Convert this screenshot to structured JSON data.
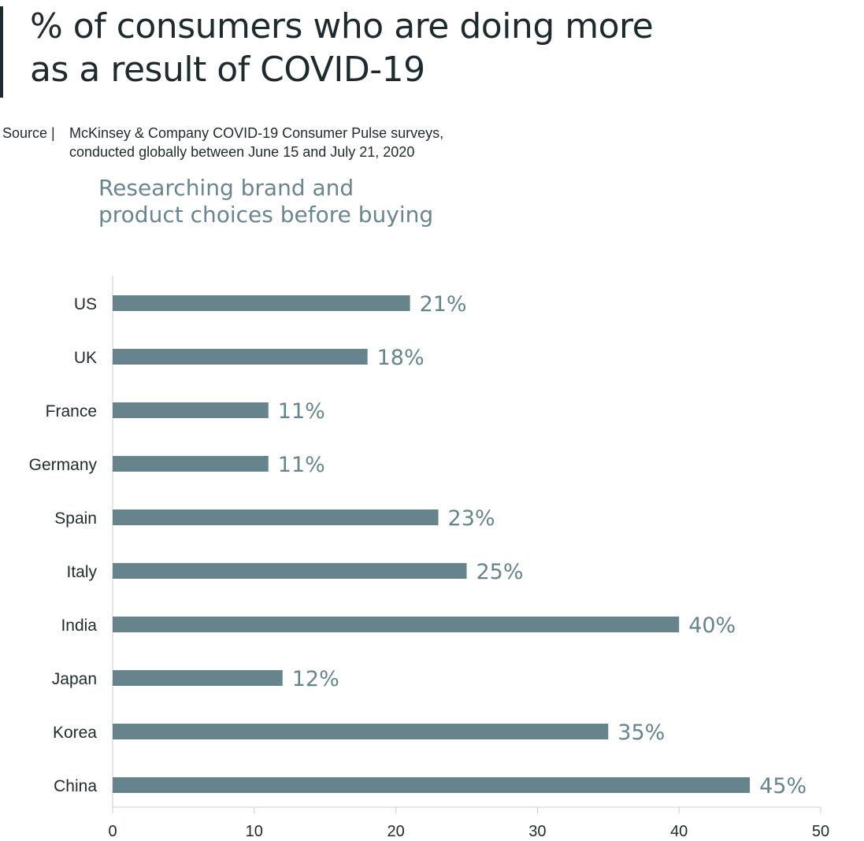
{
  "header": {
    "title_line1": "% of consumers who are doing more",
    "title_line2": "as a result of COVID-19",
    "source_label": "Source |",
    "source_line1": "McKinsey & Company COVID-19 Consumer Pulse surveys,",
    "source_line2": "conducted globally between June 15 and July 21, 2020"
  },
  "chart_data": {
    "type": "bar",
    "orientation": "horizontal",
    "title": "Researching brand and product choices before buying",
    "title_line1": "Researching brand and",
    "title_line2": "product choices before buying",
    "categories": [
      "US",
      "UK",
      "France",
      "Germany",
      "Spain",
      "Italy",
      "India",
      "Japan",
      "Korea",
      "China"
    ],
    "values": [
      21,
      18,
      11,
      11,
      23,
      25,
      40,
      12,
      35,
      45
    ],
    "data_labels": [
      "21%",
      "18%",
      "11%",
      "11%",
      "23%",
      "25%",
      "40%",
      "12%",
      "35%",
      "45%"
    ],
    "xlim": [
      0,
      50
    ],
    "xticks": [
      0,
      10,
      20,
      30,
      40,
      50
    ],
    "xtick_labels": [
      "0",
      "10",
      "20",
      "30",
      "40",
      "50"
    ],
    "xlabel": "",
    "ylabel": "",
    "grid": false,
    "legend": "none",
    "bar_color": "#67848c",
    "label_color": "#67848c",
    "axis_color": "#cccccc"
  }
}
